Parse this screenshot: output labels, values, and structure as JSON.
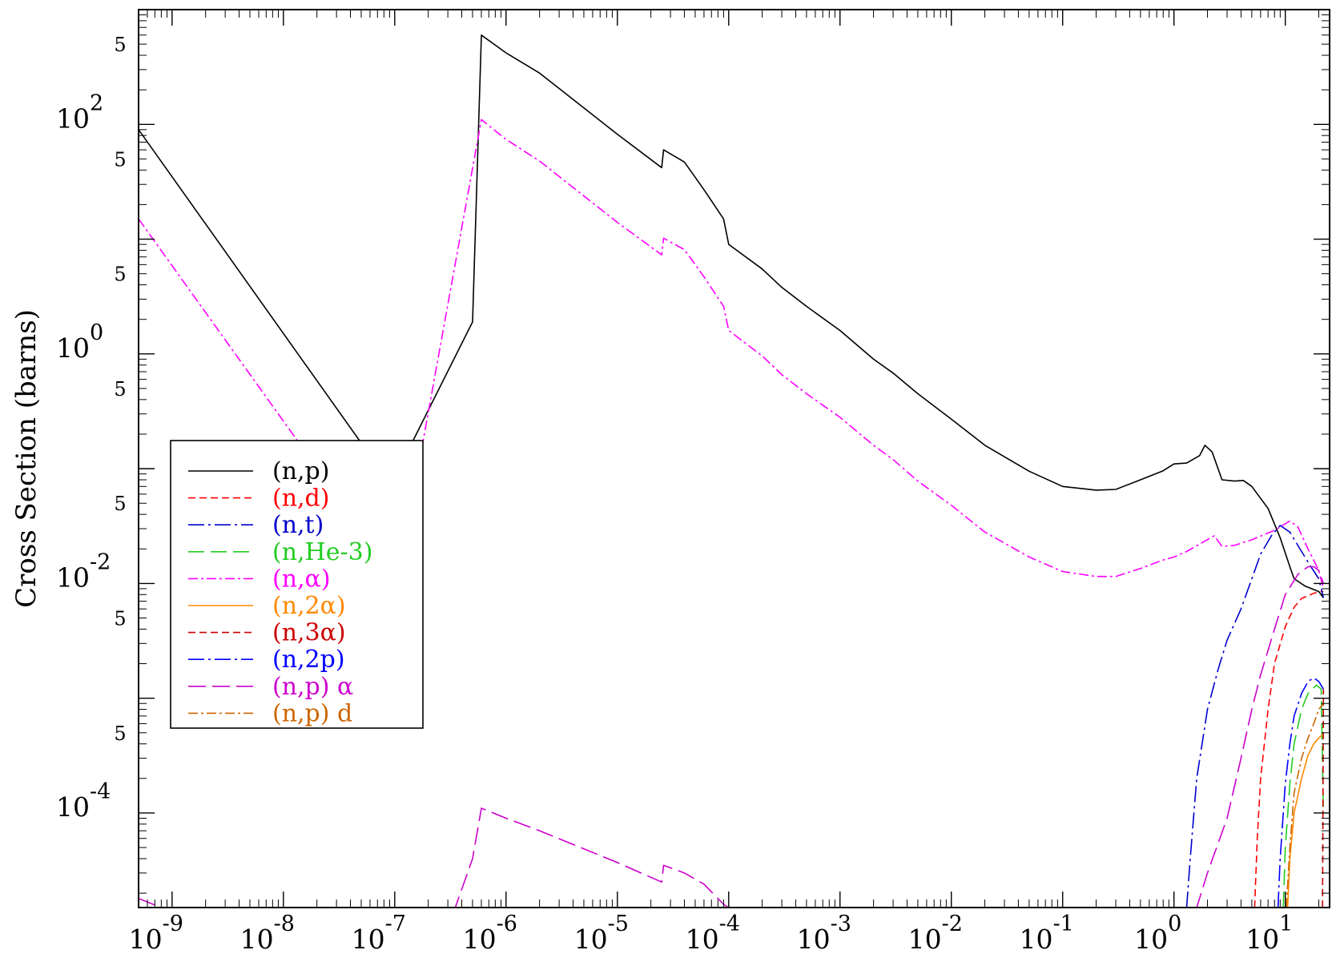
{
  "chart_data": {
    "type": "line",
    "title": "",
    "xlabel": "",
    "ylabel": "Cross Section (barns)",
    "x_scale": "log",
    "y_scale": "log",
    "xlim": [
      5e-10,
      25
    ],
    "ylim": [
      1.5e-05,
      1000
    ],
    "grid": false,
    "legend_position": "center-left",
    "x_ticks": [
      {
        "value": 1e-09,
        "base": "10",
        "exp": "-9"
      },
      {
        "value": 1e-08,
        "base": "10",
        "exp": "-8"
      },
      {
        "value": 1e-07,
        "base": "10",
        "exp": "-7"
      },
      {
        "value": 1e-06,
        "base": "10",
        "exp": "-6"
      },
      {
        "value": 1e-05,
        "base": "10",
        "exp": "-5"
      },
      {
        "value": 0.0001,
        "base": "10",
        "exp": "-4"
      },
      {
        "value": 0.001,
        "base": "10",
        "exp": "-3"
      },
      {
        "value": 0.01,
        "base": "10",
        "exp": "-2"
      },
      {
        "value": 0.1,
        "base": "10",
        "exp": "-1"
      },
      {
        "value": 1,
        "base": "10",
        "exp": "0"
      },
      {
        "value": 10,
        "base": "10",
        "exp": "1"
      }
    ],
    "y_ticks": [
      {
        "value": 0.0001,
        "base": "10",
        "exp": "-4"
      },
      {
        "value": 0.01,
        "base": "10",
        "exp": "-2"
      },
      {
        "value": 1,
        "base": "10",
        "exp": "0"
      },
      {
        "value": 100,
        "base": "10",
        "exp": "2"
      }
    ],
    "y_minor_labels": [
      {
        "value": 0.0005,
        "label": "5"
      },
      {
        "value": 0.005,
        "label": "5"
      },
      {
        "value": 0.05,
        "label": "5"
      },
      {
        "value": 0.5,
        "label": "5"
      },
      {
        "value": 5,
        "label": "5"
      },
      {
        "value": 50,
        "label": "5"
      },
      {
        "value": 500,
        "label": "5"
      }
    ],
    "series": [
      {
        "name": "(n,p)",
        "color": "#000000",
        "dash": "",
        "x": [
          5e-10,
          1e-07,
          1.2e-07,
          5e-07,
          6e-07,
          1e-06,
          2e-06,
          1e-05,
          2.5e-05,
          2.6e-05,
          4e-05,
          6e-05,
          9e-05,
          0.0001,
          0.0002,
          0.0003,
          0.0005,
          0.001,
          0.002,
          0.003,
          0.005,
          0.01,
          0.02,
          0.05,
          0.1,
          0.2,
          0.3,
          0.5,
          0.8,
          1,
          1.3,
          1.7,
          1.9,
          2.2,
          2.7,
          3.5,
          4.2,
          5,
          7,
          9,
          11,
          12,
          15,
          20,
          22
        ],
        "y": [
          90,
          0.065,
          0.12,
          1.9,
          600,
          420,
          280,
          82,
          42,
          60,
          47,
          27,
          15,
          9.0,
          5.5,
          3.8,
          2.6,
          1.6,
          0.9,
          0.68,
          0.45,
          0.27,
          0.16,
          0.095,
          0.07,
          0.065,
          0.066,
          0.08,
          0.096,
          0.11,
          0.112,
          0.13,
          0.16,
          0.14,
          0.08,
          0.078,
          0.079,
          0.07,
          0.045,
          0.025,
          0.014,
          0.011,
          0.0095,
          0.0085,
          0.0075
        ]
      },
      {
        "name": "(n,d)",
        "color": "#ff0000",
        "dash": "9 5",
        "x": [
          5.3,
          5.6,
          6,
          7,
          8,
          10,
          12,
          14,
          18,
          21,
          22
        ],
        "y": [
          1.5e-05,
          6e-05,
          0.0002,
          0.0008,
          0.002,
          0.0042,
          0.0062,
          0.0074,
          0.0082,
          0.0085,
          0.0085
        ]
      },
      {
        "name": "(n,t)",
        "color": "#0000cd",
        "dash": "20 5 3 5",
        "x": [
          1.3,
          1.4,
          1.6,
          2,
          2.5,
          3,
          4,
          5,
          6,
          7.5,
          9,
          11,
          14,
          17,
          20,
          22
        ],
        "y": [
          1.5e-05,
          4e-05,
          0.0002,
          0.0008,
          0.0018,
          0.0032,
          0.006,
          0.011,
          0.018,
          0.026,
          0.032,
          0.028,
          0.019,
          0.014,
          0.011,
          0.0075
        ]
      },
      {
        "name": "(n,He-3)",
        "color": "#22cc22",
        "dash": "20 8",
        "x": [
          9.6,
          10,
          11,
          12,
          14,
          16,
          19,
          21,
          22
        ],
        "y": [
          1.5e-05,
          5e-05,
          0.00018,
          0.0004,
          0.0008,
          0.0011,
          0.0013,
          0.0012,
          0.0001
        ]
      },
      {
        "name": "(n,α)",
        "color": "#ff00ff",
        "dash": "12 4 3 4",
        "x": [
          5e-10,
          1e-07,
          1.2e-07,
          6e-07,
          1e-06,
          2e-06,
          1e-05,
          2.5e-05,
          2.6e-05,
          4e-05,
          6e-05,
          9e-05,
          0.0001,
          0.0002,
          0.0003,
          0.0005,
          0.001,
          0.002,
          0.003,
          0.005,
          0.01,
          0.02,
          0.05,
          0.1,
          0.2,
          0.3,
          0.5,
          0.8,
          1,
          1.3,
          1.7,
          2.3,
          2.7,
          3.5,
          5,
          8,
          11,
          13,
          16,
          20,
          22
        ],
        "y": [
          15,
          0.0115,
          0.02,
          110,
          74,
          48,
          14,
          7.3,
          10.2,
          8.1,
          4.7,
          2.6,
          1.6,
          0.96,
          0.66,
          0.45,
          0.28,
          0.16,
          0.12,
          0.078,
          0.048,
          0.028,
          0.017,
          0.0127,
          0.0115,
          0.0115,
          0.0135,
          0.016,
          0.017,
          0.019,
          0.022,
          0.026,
          0.021,
          0.0215,
          0.024,
          0.029,
          0.035,
          0.031,
          0.02,
          0.013,
          0.009
        ]
      },
      {
        "name": "(n,2α)",
        "color": "#ff8800",
        "dash": "",
        "x": [
          10.5,
          11,
          12,
          14,
          16,
          18,
          20,
          21.5
        ],
        "y": [
          1.5e-05,
          4e-05,
          0.0001,
          0.0002,
          0.00032,
          0.0004,
          0.00045,
          0.00048
        ]
      },
      {
        "name": "(n,3α)",
        "color": "#cc0000",
        "dash": "9 5",
        "x": [
          21.6,
          22
        ],
        "y": [
          1.5e-05,
          0.0012
        ]
      },
      {
        "name": "(n,2p)",
        "color": "#0000ff",
        "dash": "20 5 3 5",
        "x": [
          8.6,
          9,
          10,
          11,
          12,
          14,
          16,
          18,
          20,
          22
        ],
        "y": [
          1.5e-05,
          4e-05,
          0.00018,
          0.0004,
          0.0007,
          0.0011,
          0.0014,
          0.0015,
          0.0014,
          0.0012
        ]
      },
      {
        "name": "(n,p) α",
        "color": "#cc00cc",
        "dash": "22 8",
        "x": [
          5e-10,
          8e-10,
          3.5e-07,
          5e-07,
          6e-07,
          1e-06,
          2e-06,
          1e-05,
          2.5e-05,
          2.6e-05,
          4e-05,
          6e-05,
          9e-05,
          0.0001,
          1.6,
          2,
          3,
          4,
          5,
          6,
          8,
          10,
          13,
          16,
          18,
          20,
          22
        ],
        "y": [
          1.8e-05,
          1.5e-05,
          1.5e-05,
          4e-05,
          0.00011,
          9e-05,
          7e-05,
          3.7e-05,
          2.5e-05,
          3.5e-05,
          3e-05,
          2.4e-05,
          1.6e-05,
          1.5e-05,
          1.5e-05,
          3e-05,
          9e-05,
          0.0003,
          0.0008,
          0.0016,
          0.004,
          0.008,
          0.012,
          0.014,
          0.014,
          0.013,
          0.01
        ]
      },
      {
        "name": "(n,p) d",
        "color": "#cc6600",
        "dash": "12 4 3 4",
        "x": [
          10.2,
          11,
          12,
          14,
          16,
          18,
          20,
          22
        ],
        "y": [
          1.5e-05,
          5e-05,
          0.00015,
          0.0003,
          0.00045,
          0.0006,
          0.0008,
          0.0009
        ]
      }
    ]
  }
}
